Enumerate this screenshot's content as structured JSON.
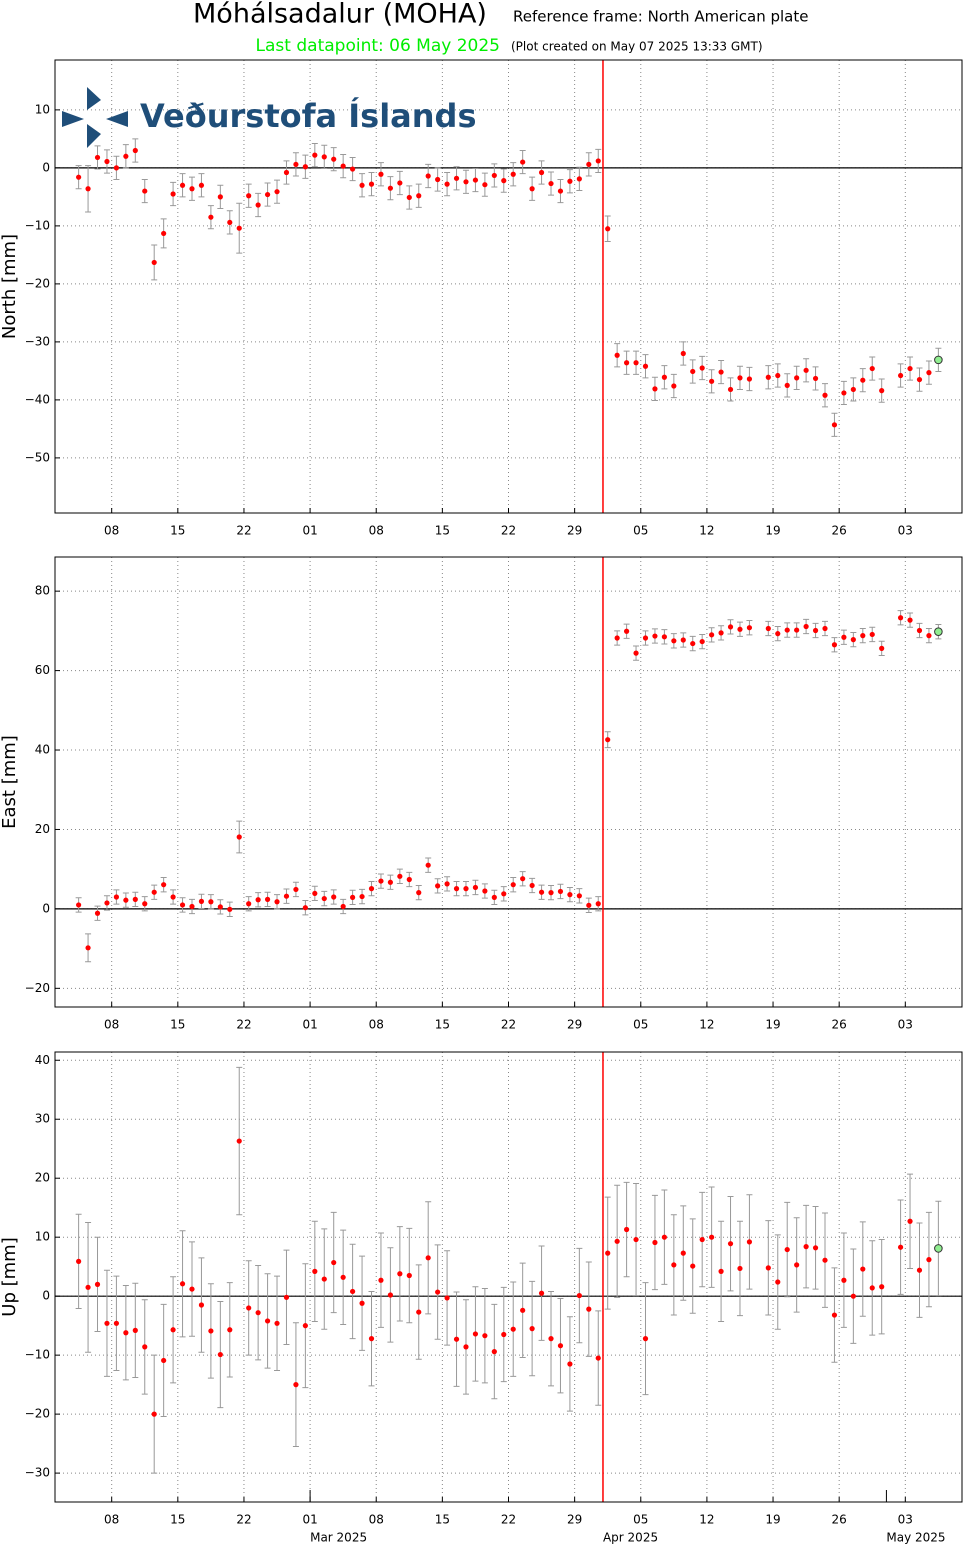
{
  "header": {
    "title": "Móhálsadalur (MOHA)",
    "reference": "Reference frame: North American plate",
    "last_datapoint": "Last datapoint: 06 May 2025",
    "created": "(Plot created on May 07 2025 13:33 GMT)",
    "logo": "Veðurstofa Íslands",
    "last_color": "#00ee00"
  },
  "chart_data": [
    {
      "type": "scatter",
      "y_label": "North [mm]",
      "xlim": [
        "2025-02-02",
        "2025-05-09"
      ],
      "ylim": [
        -59.5,
        18.6
      ],
      "yticks": [
        {
          "value": -50,
          "label": "−50"
        },
        {
          "value": -40,
          "label": "−40"
        },
        {
          "value": -30,
          "label": "−30"
        },
        {
          "value": -20,
          "label": "−20"
        },
        {
          "value": -10,
          "label": "−10"
        },
        0,
        10
      ],
      "xticks": [
        {
          "value": "2025-02-08",
          "label": "08"
        },
        {
          "value": "2025-02-15",
          "label": "15"
        },
        {
          "value": "2025-02-22",
          "label": "22"
        },
        {
          "value": "2025-03-01",
          "label": "01"
        },
        {
          "value": "2025-03-08",
          "label": "08"
        },
        {
          "value": "2025-03-15",
          "label": "15"
        },
        {
          "value": "2025-03-22",
          "label": "22"
        },
        {
          "value": "2025-03-29",
          "label": "29"
        },
        {
          "value": "2025-04-05",
          "label": "05"
        },
        {
          "value": "2025-04-12",
          "label": "12"
        },
        {
          "value": "2025-04-19",
          "label": "19"
        },
        {
          "value": "2025-04-26",
          "label": "26"
        },
        {
          "value": "2025-05-03",
          "label": "03"
        }
      ],
      "grid": true,
      "event_x": "2025-04-01",
      "event_color": "#ff0000",
      "color": "#ff0000",
      "error_color": "#999999",
      "last_point_color": "#90ee90",
      "x": [
        "2025-02-04",
        "2025-02-05",
        "2025-02-06",
        "2025-02-07",
        "2025-02-08",
        "2025-02-09",
        "2025-02-10",
        "2025-02-11",
        "2025-02-12",
        "2025-02-13",
        "2025-02-14",
        "2025-02-15",
        "2025-02-16",
        "2025-02-17",
        "2025-02-18",
        "2025-02-19",
        "2025-02-20",
        "2025-02-21",
        "2025-02-22",
        "2025-02-23",
        "2025-02-24",
        "2025-02-25",
        "2025-02-26",
        "2025-02-27",
        "2025-02-28",
        "2025-03-01",
        "2025-03-02",
        "2025-03-03",
        "2025-03-04",
        "2025-03-05",
        "2025-03-06",
        "2025-03-07",
        "2025-03-08",
        "2025-03-09",
        "2025-03-10",
        "2025-03-11",
        "2025-03-12",
        "2025-03-13",
        "2025-03-14",
        "2025-03-15",
        "2025-03-16",
        "2025-03-17",
        "2025-03-18",
        "2025-03-19",
        "2025-03-20",
        "2025-03-21",
        "2025-03-22",
        "2025-03-23",
        "2025-03-24",
        "2025-03-25",
        "2025-03-26",
        "2025-03-27",
        "2025-03-28",
        "2025-03-29",
        "2025-03-30",
        "2025-03-31",
        "2025-04-01",
        "2025-04-02",
        "2025-04-03",
        "2025-04-04",
        "2025-04-05",
        "2025-04-06",
        "2025-04-07",
        "2025-04-08",
        "2025-04-09",
        "2025-04-10",
        "2025-04-11",
        "2025-04-12",
        "2025-04-13",
        "2025-04-14",
        "2025-04-15",
        "2025-04-16",
        "2025-04-17",
        "2025-04-18",
        "2025-04-19",
        "2025-04-20",
        "2025-04-21",
        "2025-04-22",
        "2025-04-23",
        "2025-04-24",
        "2025-04-25",
        "2025-04-26",
        "2025-04-27",
        "2025-04-28",
        "2025-04-29",
        "2025-04-30",
        "2025-05-01",
        "2025-05-02",
        "2025-05-03",
        "2025-05-04",
        "2025-05-05",
        "2025-05-06"
      ],
      "values": [
        -1.6,
        -3.6,
        1.8,
        1.1,
        0,
        2,
        3,
        -4,
        -16.3,
        -11.3,
        -4.5,
        -3,
        -3.6,
        -3,
        -8.5,
        -5,
        -9.4,
        -10.4,
        -4.8,
        -6.4,
        -4.6,
        -4.1,
        -0.8,
        0.6,
        0.2,
        2.2,
        1.9,
        1.5,
        0.3,
        -0.2,
        -3,
        -2.8,
        -1.1,
        -3.5,
        -2.6,
        -5.1,
        -4.8,
        -1.4,
        -2,
        -2.8,
        -1.8,
        -2.4,
        -2.1,
        -2.9,
        -1.3,
        -2.2,
        -1.1,
        1,
        -3.6,
        -0.8,
        -2.7,
        -4,
        -2.3,
        -1.9,
        0.6,
        1.2,
        -10.5,
        -32.3,
        -33.6,
        -33.6,
        -34.2,
        -38.1,
        -36.1,
        -37.6,
        -32,
        -35.1,
        -34.5,
        -36.8,
        -35.2,
        -38.2,
        -36.2,
        -36.4,
        null,
        -36.1,
        -35.8,
        -37.5,
        -36.2,
        -34.9,
        -36.3,
        -39.2,
        -44.3,
        -38.8,
        -38.2,
        -36.6,
        -34.6,
        -38.4,
        null,
        -35.8,
        -34.6,
        -36.5,
        -35.3,
        -33.1
      ],
      "errors": [
        2,
        4,
        2,
        2,
        2,
        2,
        2,
        2,
        3,
        2.5,
        2,
        2,
        2,
        2,
        2,
        2,
        2,
        4.3,
        2,
        2,
        2,
        2,
        2,
        2,
        2,
        2,
        2,
        2,
        2,
        2,
        2,
        2,
        2,
        2,
        2,
        2,
        2,
        2,
        2,
        2,
        2,
        2,
        2,
        2,
        2,
        2,
        2,
        2,
        2,
        2,
        2,
        2,
        2,
        2,
        2,
        2,
        2.2,
        2,
        2,
        2,
        2,
        2,
        2,
        2,
        2,
        2,
        2,
        2,
        2,
        2,
        2,
        2,
        null,
        2,
        2,
        2,
        2,
        2,
        2,
        2,
        2,
        2,
        2,
        2,
        2,
        2,
        null,
        2,
        2,
        2,
        2,
        2
      ]
    },
    {
      "type": "scatter",
      "y_label": "East [mm]",
      "xlim": [
        "2025-02-02",
        "2025-05-09"
      ],
      "ylim": [
        -24.7,
        88.6
      ],
      "yticks": [
        {
          "value": -20,
          "label": "−20"
        },
        0,
        20,
        40,
        60,
        80
      ],
      "xticks": [
        {
          "value": "2025-02-08",
          "label": "08"
        },
        {
          "value": "2025-02-15",
          "label": "15"
        },
        {
          "value": "2025-02-22",
          "label": "22"
        },
        {
          "value": "2025-03-01",
          "label": "01"
        },
        {
          "value": "2025-03-08",
          "label": "08"
        },
        {
          "value": "2025-03-15",
          "label": "15"
        },
        {
          "value": "2025-03-22",
          "label": "22"
        },
        {
          "value": "2025-03-29",
          "label": "29"
        },
        {
          "value": "2025-04-05",
          "label": "05"
        },
        {
          "value": "2025-04-12",
          "label": "12"
        },
        {
          "value": "2025-04-19",
          "label": "19"
        },
        {
          "value": "2025-04-26",
          "label": "26"
        },
        {
          "value": "2025-05-03",
          "label": "03"
        }
      ],
      "grid": true,
      "event_x": "2025-04-01",
      "event_color": "#ff0000",
      "color": "#ff0000",
      "error_color": "#999999",
      "last_point_color": "#90ee90",
      "x": [
        "2025-02-04",
        "2025-02-05",
        "2025-02-06",
        "2025-02-07",
        "2025-02-08",
        "2025-02-09",
        "2025-02-10",
        "2025-02-11",
        "2025-02-12",
        "2025-02-13",
        "2025-02-14",
        "2025-02-15",
        "2025-02-16",
        "2025-02-17",
        "2025-02-18",
        "2025-02-19",
        "2025-02-20",
        "2025-02-21",
        "2025-02-22",
        "2025-02-23",
        "2025-02-24",
        "2025-02-25",
        "2025-02-26",
        "2025-02-27",
        "2025-02-28",
        "2025-03-01",
        "2025-03-02",
        "2025-03-03",
        "2025-03-04",
        "2025-03-05",
        "2025-03-06",
        "2025-03-07",
        "2025-03-08",
        "2025-03-09",
        "2025-03-10",
        "2025-03-11",
        "2025-03-12",
        "2025-03-13",
        "2025-03-14",
        "2025-03-15",
        "2025-03-16",
        "2025-03-17",
        "2025-03-18",
        "2025-03-19",
        "2025-03-20",
        "2025-03-21",
        "2025-03-22",
        "2025-03-23",
        "2025-03-24",
        "2025-03-25",
        "2025-03-26",
        "2025-03-27",
        "2025-03-28",
        "2025-03-29",
        "2025-03-30",
        "2025-03-31",
        "2025-04-01",
        "2025-04-02",
        "2025-04-03",
        "2025-04-04",
        "2025-04-05",
        "2025-04-06",
        "2025-04-07",
        "2025-04-08",
        "2025-04-09",
        "2025-04-10",
        "2025-04-11",
        "2025-04-12",
        "2025-04-13",
        "2025-04-14",
        "2025-04-15",
        "2025-04-16",
        "2025-04-17",
        "2025-04-18",
        "2025-04-19",
        "2025-04-20",
        "2025-04-21",
        "2025-04-22",
        "2025-04-23",
        "2025-04-24",
        "2025-04-25",
        "2025-04-26",
        "2025-04-27",
        "2025-04-28",
        "2025-04-29",
        "2025-04-30",
        "2025-05-01",
        "2025-05-02",
        "2025-05-03",
        "2025-05-04",
        "2025-05-05",
        "2025-05-06"
      ],
      "values": [
        1,
        -9.8,
        -1.1,
        1.5,
        3,
        2.2,
        2.4,
        1.3,
        4.2,
        6.1,
        3,
        1,
        0.6,
        1.9,
        1.8,
        0.5,
        -0.1,
        18.1,
        1.3,
        2.3,
        2.4,
        1.8,
        3.2,
        4.9,
        0.3,
        3.9,
        2.6,
        3,
        0.6,
        2.9,
        3.1,
        5.1,
        7,
        6.7,
        8.2,
        7.4,
        4.1,
        11,
        5.8,
        6.3,
        5.1,
        5.1,
        5.4,
        4.5,
        2.9,
        3.8,
        6.1,
        7.6,
        5.9,
        4.2,
        4.1,
        4.4,
        3.6,
        3.3,
        0.9,
        1.3,
        42.6,
        68.2,
        69.9,
        64.4,
        68.2,
        68.7,
        68.5,
        67.5,
        67.7,
        66.8,
        67.3,
        69,
        69.5,
        71,
        70.4,
        70.8,
        null,
        70.6,
        69.3,
        70.2,
        70.2,
        71.1,
        70.1,
        70.6,
        66.5,
        68.4,
        67.8,
        68.8,
        69.1,
        65.6,
        null,
        73.3,
        72.7,
        70.1,
        68.8,
        69.8
      ],
      "errors": [
        1.8,
        3.5,
        1.8,
        1.8,
        1.8,
        1.8,
        1.8,
        1.8,
        1.8,
        1.8,
        1.8,
        1.8,
        1.8,
        1.8,
        1.8,
        1.8,
        1.8,
        4,
        1.8,
        1.8,
        1.8,
        1.8,
        1.8,
        1.8,
        1.8,
        1.8,
        1.8,
        1.8,
        1.8,
        1.8,
        1.8,
        1.8,
        1.8,
        1.8,
        1.8,
        1.8,
        1.8,
        1.8,
        1.8,
        1.8,
        1.8,
        1.8,
        1.8,
        1.8,
        1.8,
        1.8,
        1.8,
        1.8,
        1.8,
        1.8,
        1.8,
        1.8,
        1.8,
        1.8,
        1.8,
        1.8,
        2,
        1.8,
        1.8,
        1.8,
        1.8,
        1.8,
        1.8,
        1.8,
        1.8,
        1.8,
        1.8,
        1.8,
        1.8,
        1.8,
        1.8,
        1.8,
        null,
        1.8,
        1.8,
        1.8,
        1.8,
        1.8,
        1.8,
        1.8,
        1.8,
        1.8,
        1.8,
        1.8,
        1.8,
        1.8,
        null,
        1.8,
        1.8,
        1.8,
        1.8,
        1.8
      ]
    },
    {
      "type": "scatter",
      "y_label": "Up [mm]",
      "xlim": [
        "2025-02-02",
        "2025-05-09"
      ],
      "ylim": [
        -34.9,
        41.4
      ],
      "yticks": [
        {
          "value": -30,
          "label": "−30"
        },
        {
          "value": -20,
          "label": "−20"
        },
        {
          "value": -10,
          "label": "−10"
        },
        0,
        10,
        20,
        30,
        40
      ],
      "xticks": [
        {
          "value": "2025-02-08",
          "label": "08"
        },
        {
          "value": "2025-02-15",
          "label": "15"
        },
        {
          "value": "2025-02-22",
          "label": "22"
        },
        {
          "value": "2025-03-01",
          "label": "01"
        },
        {
          "value": "2025-03-08",
          "label": "08"
        },
        {
          "value": "2025-03-15",
          "label": "15"
        },
        {
          "value": "2025-03-22",
          "label": "22"
        },
        {
          "value": "2025-03-29",
          "label": "29"
        },
        {
          "value": "2025-04-05",
          "label": "05"
        },
        {
          "value": "2025-04-12",
          "label": "12"
        },
        {
          "value": "2025-04-19",
          "label": "19"
        },
        {
          "value": "2025-04-26",
          "label": "26"
        },
        {
          "value": "2025-05-03",
          "label": "03"
        }
      ],
      "month_ticks": [
        {
          "value": "2025-03-01",
          "label": "Mar 2025"
        },
        {
          "value": "2025-04-01",
          "label": "Apr 2025"
        },
        {
          "value": "2025-05-01",
          "label": "May 2025"
        }
      ],
      "grid": true,
      "event_x": "2025-04-01",
      "event_color": "#ff0000",
      "color": "#ff0000",
      "error_color": "#999999",
      "last_point_color": "#90ee90",
      "x": [
        "2025-02-04",
        "2025-02-05",
        "2025-02-06",
        "2025-02-07",
        "2025-02-08",
        "2025-02-09",
        "2025-02-10",
        "2025-02-11",
        "2025-02-12",
        "2025-02-13",
        "2025-02-14",
        "2025-02-15",
        "2025-02-16",
        "2025-02-17",
        "2025-02-18",
        "2025-02-19",
        "2025-02-20",
        "2025-02-21",
        "2025-02-22",
        "2025-02-23",
        "2025-02-24",
        "2025-02-25",
        "2025-02-26",
        "2025-02-27",
        "2025-02-28",
        "2025-03-01",
        "2025-03-02",
        "2025-03-03",
        "2025-03-04",
        "2025-03-05",
        "2025-03-06",
        "2025-03-07",
        "2025-03-08",
        "2025-03-09",
        "2025-03-10",
        "2025-03-11",
        "2025-03-12",
        "2025-03-13",
        "2025-03-14",
        "2025-03-15",
        "2025-03-16",
        "2025-03-17",
        "2025-03-18",
        "2025-03-19",
        "2025-03-20",
        "2025-03-21",
        "2025-03-22",
        "2025-03-23",
        "2025-03-24",
        "2025-03-25",
        "2025-03-26",
        "2025-03-27",
        "2025-03-28",
        "2025-03-29",
        "2025-03-30",
        "2025-03-31",
        "2025-04-01",
        "2025-04-02",
        "2025-04-03",
        "2025-04-04",
        "2025-04-05",
        "2025-04-06",
        "2025-04-07",
        "2025-04-08",
        "2025-04-09",
        "2025-04-10",
        "2025-04-11",
        "2025-04-12",
        "2025-04-13",
        "2025-04-14",
        "2025-04-15",
        "2025-04-16",
        "2025-04-17",
        "2025-04-18",
        "2025-04-19",
        "2025-04-20",
        "2025-04-21",
        "2025-04-22",
        "2025-04-23",
        "2025-04-24",
        "2025-04-25",
        "2025-04-26",
        "2025-04-27",
        "2025-04-28",
        "2025-04-29",
        "2025-04-30",
        "2025-05-01",
        "2025-05-02",
        "2025-05-03",
        "2025-05-04",
        "2025-05-05",
        "2025-05-06"
      ],
      "values": [
        5.9,
        1.5,
        2,
        -4.6,
        -4.6,
        -6.2,
        -5.8,
        -8.6,
        -20,
        -10.9,
        -5.7,
        2.1,
        1.2,
        -1.5,
        -5.9,
        -9.9,
        -5.7,
        26.3,
        -2,
        -2.8,
        -4.2,
        -4.6,
        -0.2,
        -15,
        -5,
        4.2,
        2.9,
        5.7,
        3.2,
        0.8,
        -1.2,
        -7.2,
        2.7,
        0.2,
        3.8,
        3.5,
        -2.7,
        6.5,
        0.7,
        -0.3,
        -7.3,
        -8.6,
        -6.4,
        -6.7,
        -9.4,
        -6.5,
        -5.6,
        -2.4,
        -5.5,
        0.5,
        -7.2,
        -8.4,
        -11.5,
        0.1,
        -2.2,
        -10.5,
        7.3,
        9.3,
        11.3,
        9.6,
        -7.2,
        9.1,
        10,
        5.3,
        7.3,
        5.1,
        9.6,
        10,
        4.2,
        8.9,
        4.7,
        9.2,
        null,
        4.8,
        2.4,
        7.9,
        5.3,
        8.4,
        8.2,
        6.1,
        -3.2,
        2.7,
        0,
        4.6,
        1.4,
        1.6,
        null,
        8.3,
        12.7,
        4.4,
        6.2,
        8.1
      ],
      "errors": [
        8,
        11,
        8,
        9,
        8,
        8,
        8,
        8,
        10,
        9.5,
        9,
        9,
        8,
        8,
        8,
        9,
        8,
        12.5,
        8,
        8,
        8,
        8,
        8,
        10.5,
        10.5,
        8.5,
        8.5,
        8.5,
        8,
        8,
        8,
        8,
        8,
        8,
        8,
        8,
        8,
        9.5,
        8,
        8,
        8,
        8,
        8,
        8,
        8,
        8,
        8,
        8,
        8,
        8,
        8,
        8,
        8,
        8,
        8,
        8,
        9.5,
        9.5,
        8,
        9.5,
        9.5,
        8,
        8,
        8.5,
        8,
        8,
        8,
        8.5,
        8.5,
        8,
        8,
        8,
        null,
        8,
        8,
        8,
        8,
        7,
        7,
        8,
        8,
        8,
        8,
        8,
        8,
        8,
        null,
        8,
        8,
        8,
        8,
        8
      ]
    }
  ]
}
